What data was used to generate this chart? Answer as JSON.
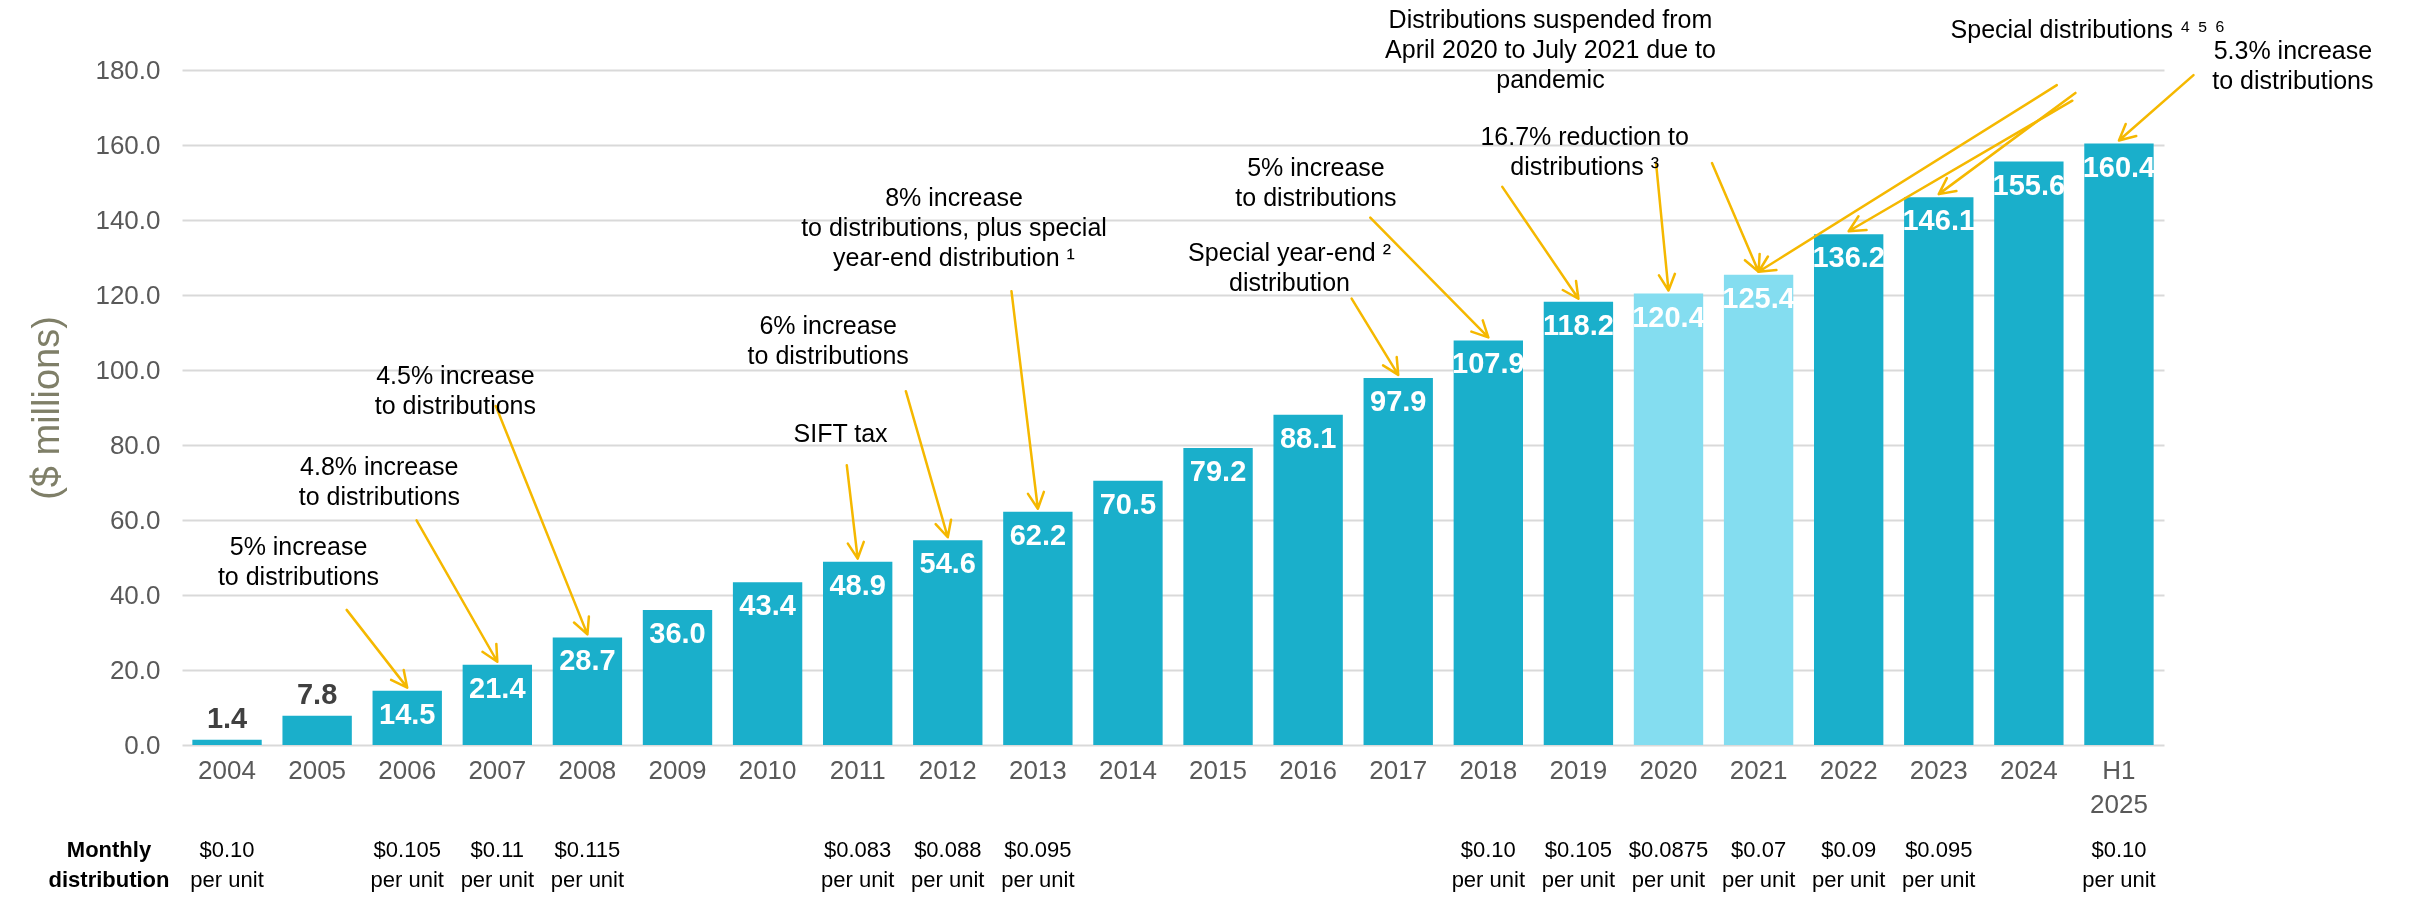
{
  "chart_data": {
    "type": "bar",
    "ylabel": "($ millions)",
    "categories": [
      "2004",
      "2005",
      "2006",
      "2007",
      "2008",
      "2009",
      "2010",
      "2011",
      "2012",
      "2013",
      "2014",
      "2015",
      "2016",
      "2017",
      "2018",
      "2019",
      "2020",
      "2021",
      "2022",
      "2023",
      "2024",
      "H1 2025"
    ],
    "values": [
      1.4,
      7.8,
      14.5,
      21.4,
      28.7,
      36.0,
      43.4,
      48.9,
      54.6,
      62.2,
      70.5,
      79.2,
      88.1,
      97.9,
      107.9,
      118.2,
      120.4,
      125.4,
      136.2,
      146.1,
      155.6,
      160.4
    ],
    "value_labels": [
      "1.4",
      "7.8",
      "14.5",
      "21.4",
      "28.7",
      "36.0",
      "43.4",
      "48.9",
      "54.6",
      "62.2",
      "70.5",
      "79.2",
      "88.1",
      "97.9",
      "107.9",
      "118.2",
      "120.4",
      "125.4",
      "136.2",
      "146.1",
      "155.6",
      "160.4"
    ],
    "colors": [
      "#1aafcb",
      "#1aafcb",
      "#1aafcb",
      "#1aafcb",
      "#1aafcb",
      "#1aafcb",
      "#1aafcb",
      "#1aafcb",
      "#1aafcb",
      "#1aafcb",
      "#1aafcb",
      "#1aafcb",
      "#1aafcb",
      "#1aafcb",
      "#1aafcb",
      "#1aafcb",
      "#84ddf0",
      "#84ddf0",
      "#1aafcb",
      "#1aafcb",
      "#1aafcb",
      "#1aafcb"
    ],
    "ylim": [
      0,
      180
    ],
    "yticks": [
      {
        "value": 0,
        "label": "0.0"
      },
      {
        "value": 20,
        "label": "20.0"
      },
      {
        "value": 40,
        "label": "40.0"
      },
      {
        "value": 60,
        "label": "60.0"
      },
      {
        "value": 80,
        "label": "80.0"
      },
      {
        "value": 100,
        "label": "100.0"
      },
      {
        "value": 120,
        "label": "120.0"
      },
      {
        "value": 140,
        "label": "140.0"
      },
      {
        "value": 160,
        "label": "160.0"
      },
      {
        "value": 180,
        "label": "180.0"
      }
    ],
    "grid": "y",
    "annotations": [
      "5% increase to distributions",
      "4.8% increase to distributions",
      "4.5% increase to distributions",
      "SIFT tax",
      "6% increase to distributions",
      "8% increase to distributions, plus special year-end distribution ¹",
      "Special year-end ² distribution",
      "5% increase to distributions",
      "16.7% reduction to distributions ³",
      "Distributions suspended from April 2020 to July 2021 due to pandemic",
      "Special distributions ⁴ ⁵ ⁶",
      "5.3% increase to distributions",
      "Monthly distribution",
      "$0.10 per unit",
      "$0.105 per unit",
      "$0.11 per unit",
      "$0.115 per unit",
      "$0.083 per unit",
      "$0.088 per unit",
      "$0.095 per unit",
      "$0.10 per unit",
      "$0.105 per unit",
      "$0.0875 per unit",
      "$0.07 per unit",
      "$0.09 per unit",
      "$0.095 per unit",
      "$0.10 per unit"
    ]
  }
}
